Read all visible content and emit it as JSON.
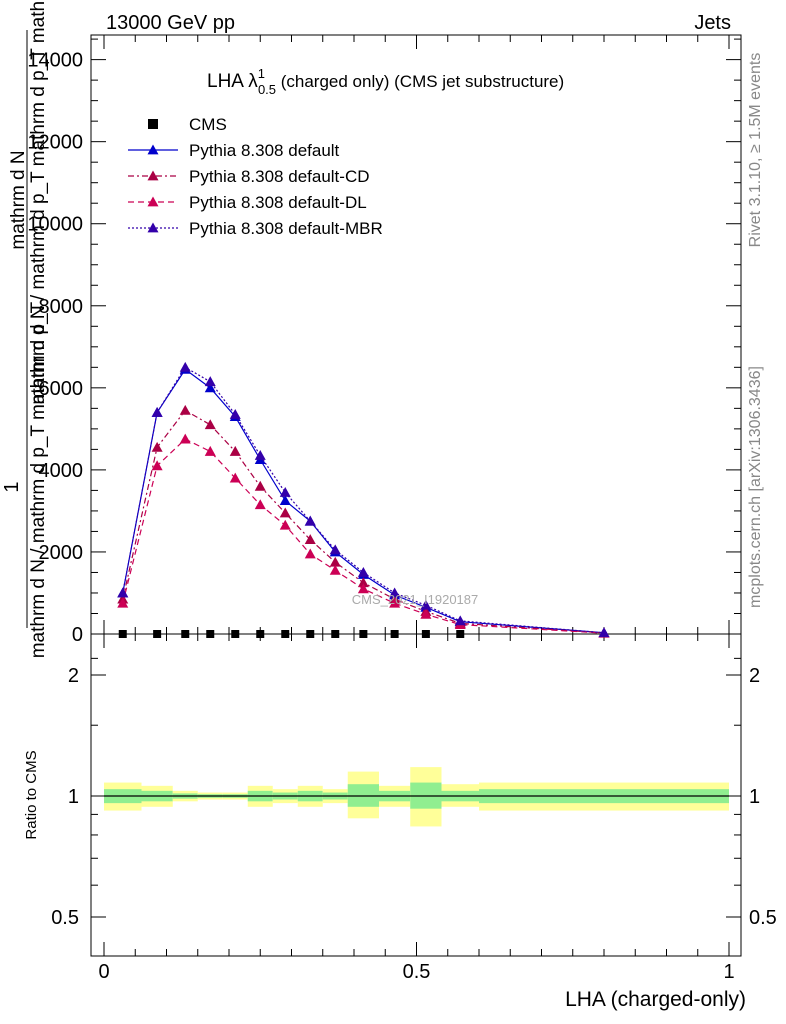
{
  "header": {
    "left": "13000 GeV pp",
    "right": "Jets"
  },
  "side_labels": {
    "rivet": "Rivet 3.1.10, ≥ 1.5M events",
    "mcplots": "mcplots.cern.ch [arXiv:1306.3436]"
  },
  "watermark": "CMS_2021_I1920187",
  "chart_data": [
    {
      "type": "line",
      "title": {
        "main": "LHA λ",
        "sup": "1",
        "sub": "0.5",
        "rest": " (charged only) (CMS jet substructure)"
      },
      "ylabel_top": {
        "one": "1",
        "numer": "mathrm d N",
        "denom": "mathrm d N / mathrm d p_T mathrm d p_T mathrm d lambda"
      },
      "xlim": [
        0,
        1
      ],
      "ylim": [
        0,
        14600
      ],
      "yticks": [
        0,
        2000,
        4000,
        6000,
        8000,
        10000,
        12000,
        14000
      ],
      "yticklabels": [
        "0",
        "2000",
        "4000",
        "6000",
        "8000",
        "10000",
        "12000",
        "14000"
      ],
      "legend_position": "top-left",
      "series": [
        {
          "name": "CMS",
          "color": "#000000",
          "marker": "square",
          "line": "none",
          "x": [
            0.03,
            0.085,
            0.13,
            0.17,
            0.21,
            0.25,
            0.29,
            0.33,
            0.37,
            0.415,
            0.465,
            0.515,
            0.57
          ],
          "y": [
            0,
            0,
            0,
            0,
            0,
            0,
            0,
            0,
            0,
            0,
            0,
            0,
            0
          ]
        },
        {
          "name": "Pythia 8.308 default",
          "color": "#0000cc",
          "marker": "triangle",
          "line": "solid",
          "x": [
            0.03,
            0.085,
            0.13,
            0.17,
            0.21,
            0.25,
            0.29,
            0.33,
            0.37,
            0.415,
            0.465,
            0.515,
            0.57,
            0.8
          ],
          "y": [
            1000,
            5400,
            6450,
            6000,
            5300,
            4250,
            3250,
            2750,
            2000,
            1450,
            950,
            650,
            300,
            30
          ]
        },
        {
          "name": "Pythia 8.308 default-CD",
          "color": "#aa0044",
          "marker": "triangle",
          "line": "dashdot",
          "x": [
            0.03,
            0.085,
            0.13,
            0.17,
            0.21,
            0.25,
            0.29,
            0.33,
            0.37,
            0.415,
            0.465,
            0.515,
            0.57,
            0.8
          ],
          "y": [
            850,
            4550,
            5450,
            5100,
            4450,
            3600,
            2950,
            2300,
            1750,
            1250,
            850,
            550,
            260,
            25
          ]
        },
        {
          "name": "Pythia 8.308 default-DL",
          "color": "#cc0055",
          "marker": "triangle",
          "line": "dashed",
          "x": [
            0.03,
            0.085,
            0.13,
            0.17,
            0.21,
            0.25,
            0.29,
            0.33,
            0.37,
            0.415,
            0.465,
            0.515,
            0.57,
            0.8
          ],
          "y": [
            750,
            4100,
            4750,
            4450,
            3800,
            3150,
            2650,
            1950,
            1550,
            1100,
            750,
            480,
            230,
            20
          ]
        },
        {
          "name": "Pythia 8.308 default-MBR",
          "color": "#3300aa",
          "marker": "triangle",
          "line": "dotted",
          "x": [
            0.03,
            0.085,
            0.13,
            0.17,
            0.21,
            0.25,
            0.29,
            0.33,
            0.37,
            0.415,
            0.465,
            0.515,
            0.57,
            0.8
          ],
          "y": [
            1000,
            5400,
            6500,
            6150,
            5350,
            4350,
            3450,
            2750,
            2050,
            1500,
            1000,
            700,
            320,
            30
          ]
        }
      ]
    },
    {
      "type": "area",
      "ylabel": "Ratio to CMS",
      "xlabel": "LHA (charged-only)",
      "xlim": [
        0,
        1
      ],
      "ylim": [
        0.4,
        2.4
      ],
      "xticklabels": [
        "0",
        "0.5",
        "1"
      ],
      "xticks": [
        0,
        0.5,
        1
      ],
      "yticklabels": [
        "0.5",
        "1",
        "2"
      ],
      "yticks": [
        0.5,
        1,
        2
      ],
      "bins": [
        0,
        0.06,
        0.11,
        0.15,
        0.19,
        0.23,
        0.27,
        0.31,
        0.35,
        0.39,
        0.44,
        0.49,
        0.54,
        0.6,
        1.0
      ],
      "band_inner": [
        [
          0.96,
          1.04
        ],
        [
          0.97,
          1.03
        ],
        [
          0.985,
          1.015
        ],
        [
          0.99,
          1.01
        ],
        [
          0.99,
          1.01
        ],
        [
          0.97,
          1.03
        ],
        [
          0.98,
          1.02
        ],
        [
          0.97,
          1.03
        ],
        [
          0.98,
          1.02
        ],
        [
          0.94,
          1.07
        ],
        [
          0.97,
          1.03
        ],
        [
          0.93,
          1.08
        ],
        [
          0.97,
          1.03
        ],
        [
          0.96,
          1.04
        ]
      ],
      "band_outer": [
        [
          0.92,
          1.08
        ],
        [
          0.94,
          1.06
        ],
        [
          0.97,
          1.03
        ],
        [
          0.98,
          1.02
        ],
        [
          0.98,
          1.02
        ],
        [
          0.94,
          1.06
        ],
        [
          0.96,
          1.04
        ],
        [
          0.94,
          1.06
        ],
        [
          0.96,
          1.04
        ],
        [
          0.88,
          1.15
        ],
        [
          0.94,
          1.06
        ],
        [
          0.84,
          1.18
        ],
        [
          0.94,
          1.07
        ],
        [
          0.92,
          1.08
        ]
      ],
      "band_colors": {
        "inner": "#90ee90",
        "outer": "#ffff99"
      }
    }
  ]
}
